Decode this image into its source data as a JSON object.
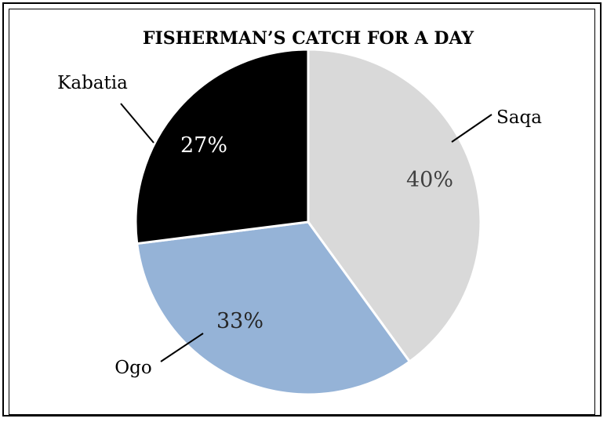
{
  "chart_data": {
    "type": "pie",
    "title": "FISHERMAN’S CATCH FOR A DAY",
    "categories": [
      "Saqa",
      "Ogo",
      "Kabatia"
    ],
    "values": [
      40,
      33,
      27
    ],
    "value_labels": [
      "40%",
      "33%",
      "27%"
    ],
    "colors": [
      "#d9d9d9",
      "#95b3d7",
      "#000000"
    ],
    "label_colors": [
      "#404040",
      "#262626",
      "#ffffff"
    ],
    "slice_border_color": "#ffffff",
    "start": "12 o'clock, clockwise",
    "legend": "none; category names shown as callout labels"
  }
}
